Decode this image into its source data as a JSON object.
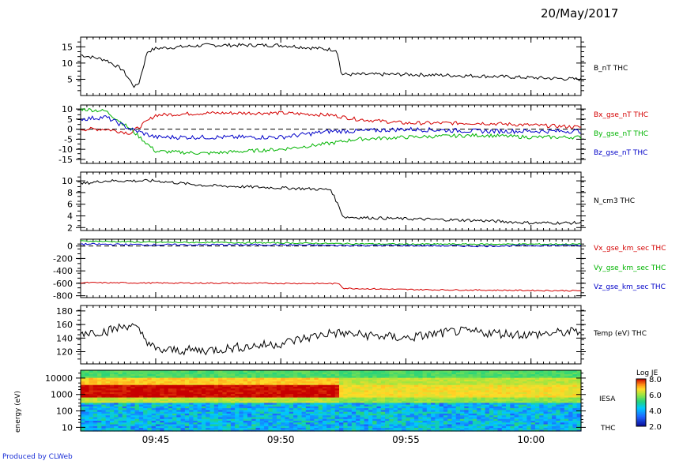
{
  "header": {
    "date": "20/May/2017"
  },
  "footer": {
    "credit": "Produced by CLWeb"
  },
  "chart_data": [
    {
      "type": "line",
      "panel": "B_nT",
      "ylim": [
        0,
        18
      ],
      "yticks": [
        "5",
        "10",
        "15"
      ],
      "ytick_values": [
        5,
        10,
        15
      ],
      "series": [
        {
          "name": "B_nT THC",
          "color": "#000000",
          "x": [
            "09:42",
            "09:43",
            "09:43:40",
            "09:44:10",
            "09:44:20",
            "09:44:40",
            "09:45",
            "09:47",
            "09:50",
            "09:52:15",
            "09:52:25",
            "09:55",
            "09:58",
            "10:00",
            "10:02"
          ],
          "values": [
            12.5,
            11,
            8,
            2.5,
            4,
            13.5,
            14.5,
            15.5,
            15.5,
            14,
            6.5,
            6.5,
            6,
            5.5,
            5
          ]
        }
      ]
    },
    {
      "type": "line",
      "panel": "B_gse_nT",
      "ylim": [
        -17,
        12
      ],
      "yticks": [
        "10",
        "5",
        "0",
        "-5",
        "-10",
        "-15"
      ],
      "ytick_values": [
        10,
        5,
        0,
        -5,
        -10,
        -15
      ],
      "zero_line": true,
      "series": [
        {
          "name": "Bx_gse_nT THC",
          "color": "#d40000",
          "x": [
            "09:42",
            "09:43",
            "09:44",
            "09:45",
            "09:47",
            "09:50",
            "09:52",
            "09:53",
            "09:55",
            "09:58",
            "10:00",
            "10:02"
          ],
          "values": [
            0,
            0,
            -2,
            7,
            8,
            8,
            7,
            5,
            3,
            3,
            2,
            1
          ]
        },
        {
          "name": "By_gse_nT THC",
          "color": "#00b400",
          "x": [
            "09:42",
            "09:43",
            "09:44",
            "09:45",
            "09:47",
            "09:50",
            "09:52",
            "09:53",
            "09:55",
            "09:58",
            "10:00",
            "10:02"
          ],
          "values": [
            10,
            9,
            0,
            -11,
            -12,
            -10,
            -7,
            -5,
            -4,
            -3,
            -4,
            -4
          ]
        },
        {
          "name": "Bz_gse_nT THC",
          "color": "#0000c8",
          "x": [
            "09:42",
            "09:43",
            "09:44",
            "09:45",
            "09:47",
            "09:50",
            "09:52",
            "09:53",
            "09:55",
            "09:58",
            "10:00",
            "10:02"
          ],
          "values": [
            5,
            6,
            0,
            -4,
            -4,
            -4,
            -1,
            -1,
            0,
            -1,
            -1,
            -1
          ]
        }
      ]
    },
    {
      "type": "line",
      "panel": "N_cm3",
      "ylim": [
        1.5,
        11.5
      ],
      "yticks": [
        "10",
        "8",
        "6",
        "4",
        "2"
      ],
      "ytick_values": [
        10,
        8,
        6,
        4,
        2
      ],
      "series": [
        {
          "name": "N_cm3 THC",
          "color": "#000000",
          "x": [
            "09:42",
            "09:43",
            "09:45",
            "09:47",
            "09:50",
            "09:52",
            "09:52:20",
            "09:52:30",
            "09:55",
            "09:58",
            "10:00",
            "10:02"
          ],
          "values": [
            9.5,
            10,
            10,
            9.2,
            8.8,
            8.5,
            5.5,
            3.8,
            3.5,
            3.2,
            2.8,
            2.8
          ]
        }
      ]
    },
    {
      "type": "line",
      "panel": "V_gse_km_sec",
      "ylim": [
        -830,
        110
      ],
      "yticks": [
        "0",
        "-200",
        "-400",
        "-600",
        "-800"
      ],
      "ytick_values": [
        0,
        -200,
        -400,
        -600,
        -800
      ],
      "zero_line": true,
      "series": [
        {
          "name": "Vx_gse_km_sec THC",
          "color": "#d40000",
          "x": [
            "09:42",
            "09:45",
            "09:50",
            "09:52:20",
            "09:52:30",
            "09:55",
            "09:58",
            "10:00",
            "10:02"
          ],
          "values": [
            -590,
            -595,
            -600,
            -605,
            -680,
            -700,
            -710,
            -715,
            -720
          ]
        },
        {
          "name": "Vy_gse_km_sec THC",
          "color": "#00b400",
          "x": [
            "09:42",
            "09:45",
            "09:50",
            "09:52",
            "09:55",
            "09:58",
            "10:00",
            "10:02"
          ],
          "values": [
            80,
            60,
            50,
            40,
            30,
            30,
            30,
            30
          ]
        },
        {
          "name": "Vz_gse_km_sec THC",
          "color": "#0000c8",
          "x": [
            "09:42",
            "09:45",
            "09:50",
            "09:52",
            "09:55",
            "09:58",
            "10:00",
            "10:02"
          ],
          "values": [
            30,
            20,
            20,
            10,
            10,
            0,
            10,
            10
          ]
        }
      ]
    },
    {
      "type": "line",
      "panel": "Temp",
      "ylim": [
        102,
        188
      ],
      "yticks": [
        "180",
        "160",
        "140",
        "120"
      ],
      "ytick_values": [
        180,
        160,
        140,
        120
      ],
      "series": [
        {
          "name": "Temp (eV) THC",
          "color": "#000000",
          "x": [
            "09:42",
            "09:43",
            "09:44",
            "09:44:20",
            "09:45",
            "09:47",
            "09:50",
            "09:52",
            "09:55",
            "09:57",
            "10:00",
            "10:02"
          ],
          "values": [
            148,
            150,
            160,
            150,
            122,
            122,
            132,
            148,
            140,
            150,
            145,
            150
          ]
        }
      ]
    },
    {
      "type": "heatmap",
      "panel": "IESA",
      "ylabel": "energy (eV)",
      "yscale": "log",
      "ylim": [
        6,
        30000
      ],
      "yticks": [
        "10000",
        "1000",
        "100",
        "10"
      ],
      "ytick_values": [
        10000,
        1000,
        100,
        10
      ],
      "series_label": "IESA",
      "instrument": "THC",
      "colorbar": {
        "label": "Log JE",
        "ticks": [
          "8.0",
          "6.0",
          "4.0",
          "2.0"
        ],
        "min": 2.0,
        "max": 8.0
      },
      "bands": [
        {
          "from_eV": 700,
          "to_eV": 4000,
          "value_before": 8.0,
          "value_after": 6.6,
          "change_time": "09:52:20"
        }
      ]
    }
  ],
  "x_axis": {
    "range": [
      "09:42",
      "10:02"
    ],
    "ticks": [
      "09:45",
      "09:50",
      "09:55",
      "10:00"
    ]
  },
  "labels": {
    "b_total": "B_nT THC",
    "bx": "Bx_gse_nT THC",
    "by": "By_gse_nT THC",
    "bz": "Bz_gse_nT THC",
    "n": "N_cm3 THC",
    "vx": "Vx_gse_km_sec THC",
    "vy": "Vy_gse_km_sec THC",
    "vz": "Vz_gse_km_sec THC",
    "temp": "Temp (eV) THC",
    "iesa": "IESA",
    "thc": "THC",
    "energy": "energy (eV)",
    "logje": "Log JE"
  },
  "colors": {
    "red": "#d40000",
    "green": "#00b400",
    "blue": "#0000c8",
    "black": "#000000"
  }
}
